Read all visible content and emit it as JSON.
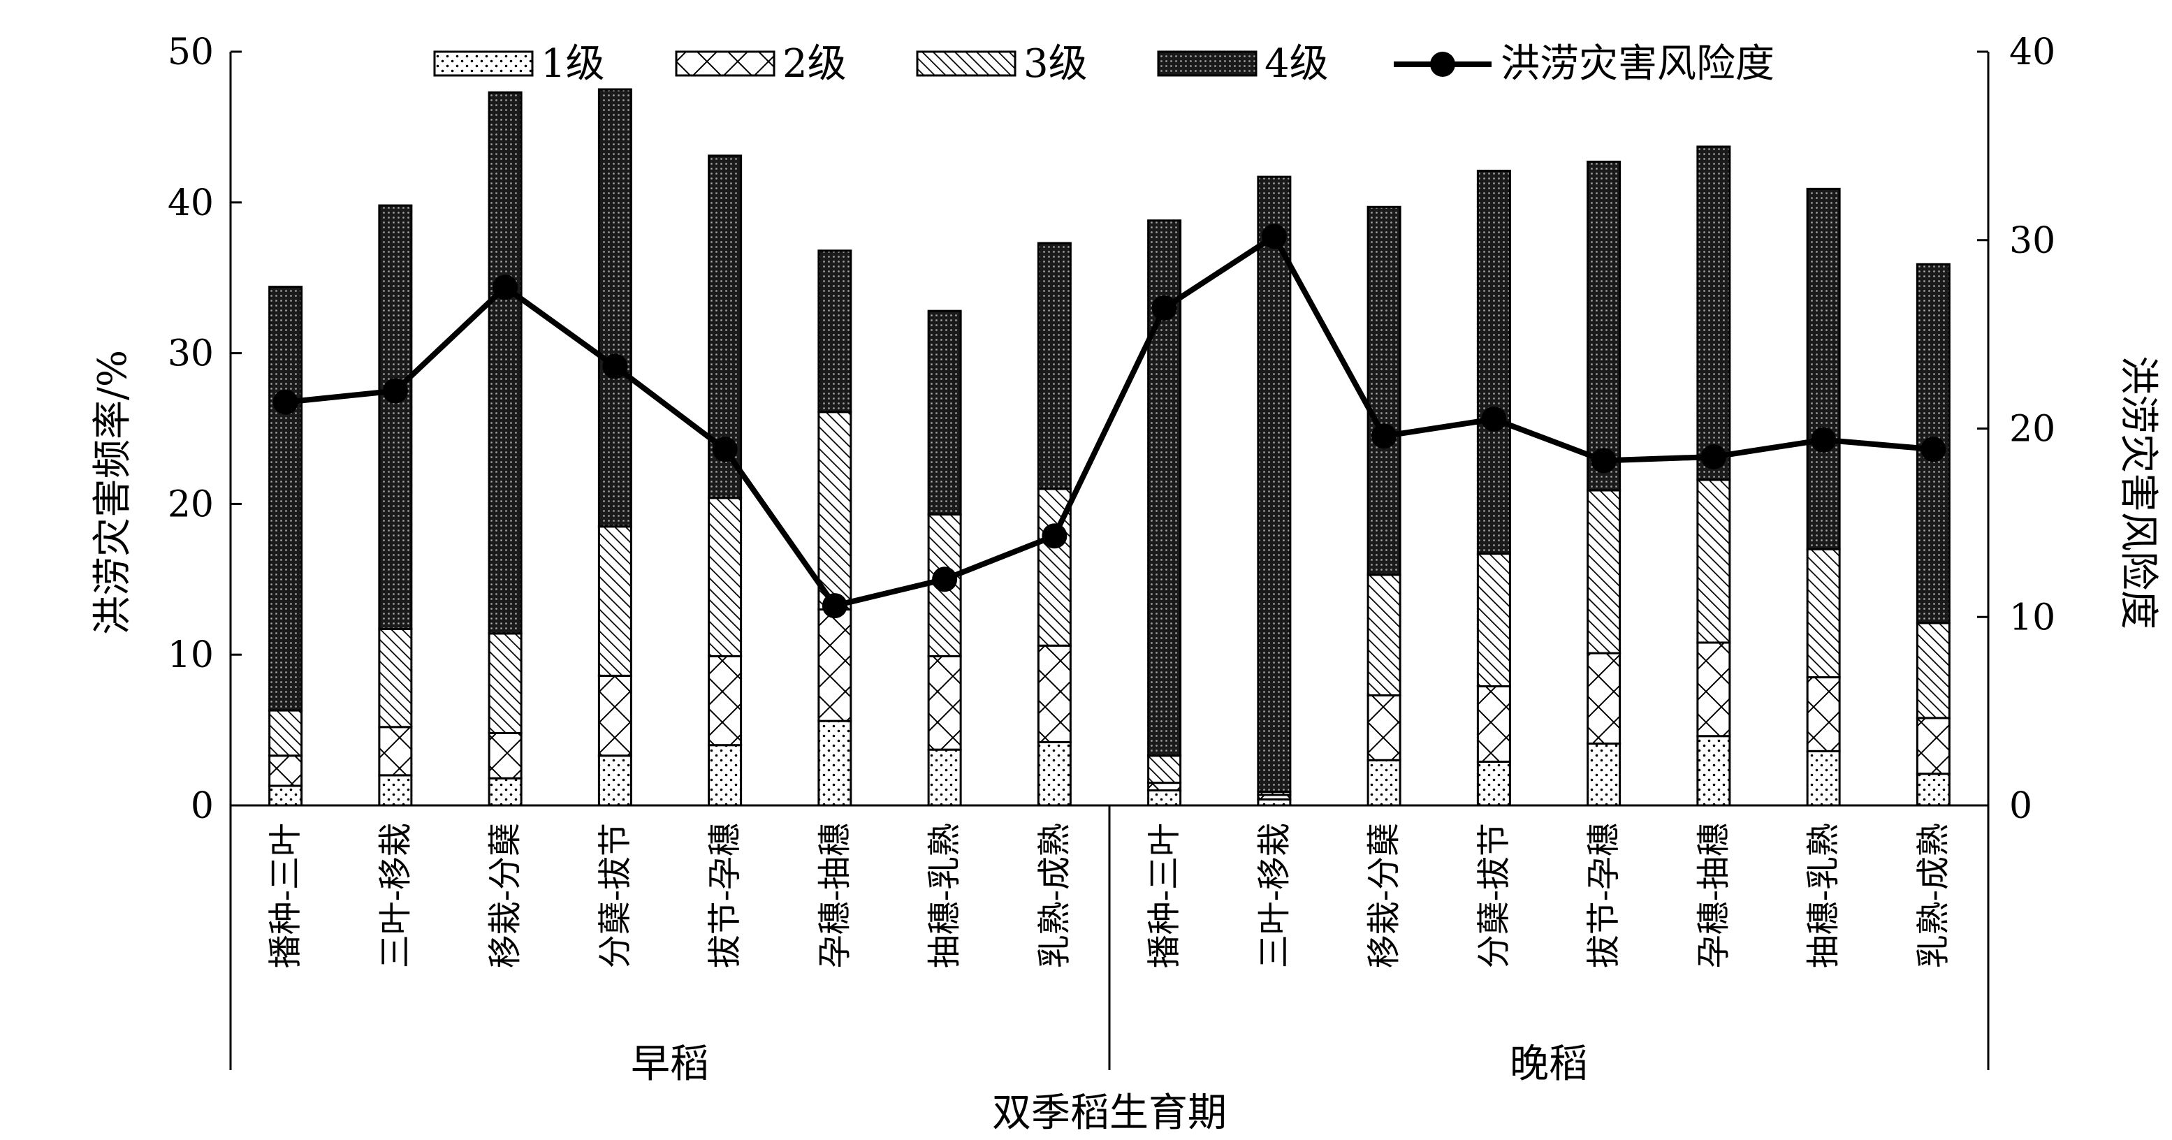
{
  "chart_data": {
    "type": "bar",
    "stacked": true,
    "xlabel": "双季稻生育期",
    "ylabel_left": "洪涝灾害频率/%",
    "ylabel_right": "洪涝灾害风险度",
    "ylim_left": [
      0,
      50
    ],
    "ylim_right": [
      0,
      40
    ],
    "yticks_left": [
      "0",
      "10",
      "20",
      "30",
      "40",
      "50"
    ],
    "yticks_right": [
      "0",
      "10",
      "20",
      "30",
      "40"
    ],
    "groups": [
      {
        "name": "早稻",
        "categories": [
          "播种-三叶",
          "三叶-移栽",
          "移栽-分蘖",
          "分蘖-拔节",
          "拔节-孕穗",
          "孕穗-抽穗",
          "抽穗-乳熟",
          "乳熟-成熟"
        ]
      },
      {
        "name": "晚稻",
        "categories": [
          "播种-三叶",
          "三叶-移栽",
          "移栽-分蘖",
          "分蘖-拔节",
          "拔节-孕穗",
          "孕穗-抽穗",
          "抽穗-乳熟",
          "乳熟-成熟"
        ]
      }
    ],
    "categories": [
      "播种-三叶",
      "三叶-移栽",
      "移栽-分蘖",
      "分蘖-拔节",
      "拔节-孕穗",
      "孕穗-抽穗",
      "抽穗-乳熟",
      "乳熟-成熟",
      "播种-三叶",
      "三叶-移栽",
      "移栽-分蘖",
      "分蘖-拔节",
      "拔节-孕穗",
      "孕穗-抽穗",
      "抽穗-乳熟",
      "乳熟-成熟"
    ],
    "series": [
      {
        "name": "1级",
        "axis": "left",
        "pattern": "dots",
        "values": [
          1.3,
          2.0,
          1.8,
          3.3,
          4.0,
          5.6,
          3.7,
          4.2,
          1.0,
          0.4,
          3.0,
          2.9,
          4.1,
          4.6,
          3.6,
          2.1
        ]
      },
      {
        "name": "2级",
        "axis": "left",
        "pattern": "cross",
        "values": [
          2.0,
          3.2,
          3.0,
          5.3,
          5.9,
          7.4,
          6.2,
          6.4,
          0.5,
          0.3,
          4.3,
          5.0,
          6.0,
          6.2,
          4.9,
          3.7
        ]
      },
      {
        "name": "3级",
        "axis": "left",
        "pattern": "diagonal",
        "values": [
          3.0,
          6.5,
          6.6,
          9.9,
          10.5,
          13.1,
          9.4,
          10.4,
          1.8,
          0.2,
          8.0,
          8.8,
          10.8,
          10.8,
          8.5,
          6.3
        ]
      },
      {
        "name": "4级",
        "axis": "left",
        "pattern": "dense",
        "values": [
          28.1,
          28.1,
          35.9,
          29.0,
          22.7,
          10.7,
          13.5,
          16.3,
          35.5,
          40.8,
          24.4,
          25.4,
          21.8,
          22.1,
          23.9,
          23.8
        ]
      },
      {
        "name": "洪涝灾害风险度",
        "axis": "right",
        "type": "line",
        "values": [
          21.4,
          22.0,
          27.5,
          23.3,
          18.9,
          10.6,
          12.0,
          14.3,
          26.4,
          30.2,
          19.6,
          20.5,
          18.3,
          18.5,
          19.4,
          18.9
        ]
      }
    ],
    "legend": {
      "position": "top",
      "entries": [
        "1级",
        "2级",
        "3级",
        "4级",
        "洪涝灾害风险度"
      ]
    },
    "grid": false
  }
}
